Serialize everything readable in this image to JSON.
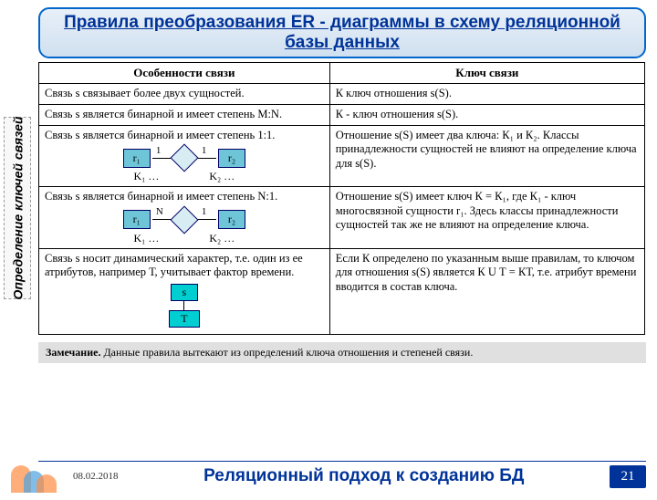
{
  "header": {
    "title": "Правила преобразования ER - диаграммы в схему реляционной базы данных"
  },
  "sidebar": {
    "label": "Определение ключей связей"
  },
  "table": {
    "headers": {
      "col1": "Особенности связи",
      "col2": "Ключ связи"
    },
    "rows": [
      {
        "feat": "Связь s связывает более двух сущностей.",
        "key": "К   ключ отношения s(S)."
      },
      {
        "feat": "Связь s является бинарной и имеет степень M:N.",
        "key": "К - ключ отношения s(S)."
      },
      {
        "feat_text": "Связь s является бинарной и имеет степень 1:1.",
        "diag": {
          "r1": "r₁",
          "r2": "r₂",
          "c1": "1",
          "c2": "1",
          "k1": "K₁ …",
          "k2": "K₂ …"
        },
        "key": "Отношение s(S) имеет два ключа: К₁ и К₂. Классы принадлежности сущностей не влияют на определение ключа для s(S)."
      },
      {
        "feat_text": "Связь s является бинарной и имеет степень N:1.",
        "diag": {
          "r1": "r₁",
          "r2": "r₂",
          "c1": "N",
          "c2": "1",
          "k1": "K₁ …",
          "k2": "K₂ …"
        },
        "key": "Отношение s(S) имеет ключ К = К₁, где К₁ - ключ многосвязной сущности r₁. Здесь классы принадлежности сущностей так же не влияют на определение ключа."
      },
      {
        "feat_text": "Связь s носит динамический характер, т.е. один из ее атрибутов, например Т, учитывает фактор времени.",
        "small": {
          "s": "s",
          "t": "T"
        },
        "key": "Если К определено по указанным выше правилам, то ключом для отношения s(S) является К U Т = КТ, т.е. атрибут времени вводится в состав ключа."
      }
    ]
  },
  "note": {
    "bold": "Замечание.",
    "text": " Данные правила вытекают из определений ключа отношения и степеней связи."
  },
  "footer": {
    "date": "08.02.2018",
    "title": "Реляционный подход к созданию БД",
    "page": "21"
  },
  "colors": {
    "accent": "#003399",
    "box_fill": "#6ec5d8",
    "small_fill": "#00ced1"
  }
}
